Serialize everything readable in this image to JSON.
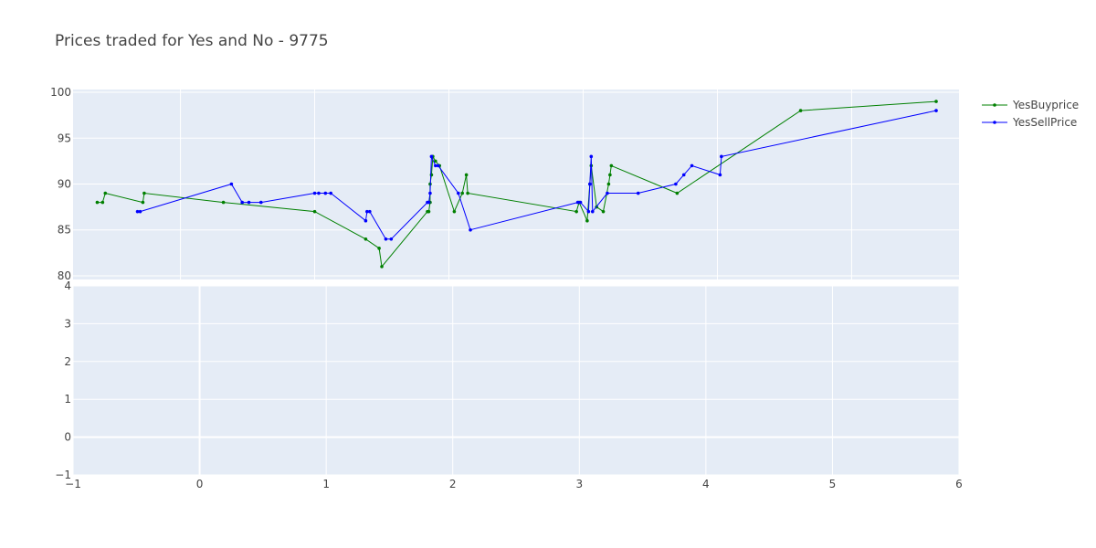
{
  "chart_data": {
    "type": "line",
    "title": "Prices traded for Yes and No - 9775",
    "top_panel": {
      "ylim": [
        79.6,
        100.3
      ],
      "xlim": [
        -0.8,
        5.8
      ],
      "yticks": [
        "80",
        "85",
        "90",
        "95",
        "100"
      ],
      "yticks_values": [
        80,
        85,
        90,
        95,
        100
      ],
      "grid": true,
      "series": [
        {
          "name": "YesBuyprice",
          "color": "#008000",
          "points": [
            [
              -0.62,
              88
            ],
            [
              -0.58,
              88
            ],
            [
              -0.56,
              89
            ],
            [
              -0.28,
              88
            ],
            [
              -0.27,
              89
            ],
            [
              0.32,
              88
            ],
            [
              1.0,
              87
            ],
            [
              1.38,
              84
            ],
            [
              1.48,
              83
            ],
            [
              1.5,
              81
            ],
            [
              1.84,
              87
            ],
            [
              1.85,
              87
            ],
            [
              1.86,
              88
            ],
            [
              1.86,
              90
            ],
            [
              1.87,
              91
            ],
            [
              1.88,
              93
            ],
            [
              1.9,
              92.5
            ],
            [
              1.93,
              92
            ],
            [
              2.04,
              87
            ],
            [
              2.1,
              89
            ],
            [
              2.13,
              91
            ],
            [
              2.14,
              89
            ],
            [
              2.95,
              87
            ],
            [
              2.97,
              88
            ],
            [
              3.03,
              86
            ],
            [
              3.05,
              90
            ],
            [
              3.06,
              92
            ],
            [
              3.1,
              87.5
            ],
            [
              3.15,
              87
            ],
            [
              3.19,
              90
            ],
            [
              3.2,
              91
            ],
            [
              3.21,
              92
            ],
            [
              3.7,
              89
            ],
            [
              4.62,
              98
            ],
            [
              5.63,
              99
            ]
          ]
        },
        {
          "name": "YesSellPrice",
          "color": "#0000ff",
          "points": [
            [
              -0.32,
              87
            ],
            [
              -0.3,
              87
            ],
            [
              0.38,
              90
            ],
            [
              0.46,
              88
            ],
            [
              0.51,
              88
            ],
            [
              0.6,
              88
            ],
            [
              1.0,
              89
            ],
            [
              1.03,
              89
            ],
            [
              1.08,
              89
            ],
            [
              1.12,
              89
            ],
            [
              1.38,
              86
            ],
            [
              1.39,
              87
            ],
            [
              1.41,
              87
            ],
            [
              1.53,
              84
            ],
            [
              1.57,
              84
            ],
            [
              1.84,
              88
            ],
            [
              1.85,
              88
            ],
            [
              1.86,
              89
            ],
            [
              1.87,
              93
            ],
            [
              1.9,
              92
            ],
            [
              1.92,
              92
            ],
            [
              2.07,
              89
            ],
            [
              2.16,
              85
            ],
            [
              2.96,
              88
            ],
            [
              2.98,
              88
            ],
            [
              3.04,
              87
            ],
            [
              3.05,
              90
            ],
            [
              3.06,
              93
            ],
            [
              3.07,
              87
            ],
            [
              3.18,
              89
            ],
            [
              3.41,
              89
            ],
            [
              3.69,
              90
            ],
            [
              3.75,
              91
            ],
            [
              3.81,
              92
            ],
            [
              4.02,
              91
            ],
            [
              4.03,
              93
            ],
            [
              5.63,
              98
            ]
          ]
        }
      ]
    },
    "bottom_panel": {
      "xlim": [
        -1,
        6
      ],
      "ylim": [
        -1,
        4
      ],
      "xticks": [
        "−1",
        "0",
        "1",
        "2",
        "3",
        "4",
        "5",
        "6"
      ],
      "xticks_values": [
        -1,
        0,
        1,
        2,
        3,
        4,
        5,
        6
      ],
      "yticks": [
        "−1",
        "0",
        "1",
        "2",
        "3",
        "4"
      ],
      "yticks_values": [
        -1,
        0,
        1,
        2,
        3,
        4
      ],
      "grid": true,
      "series": []
    },
    "legend": {
      "placement": "top-right",
      "entries": [
        "YesBuyprice",
        "YesSellPrice"
      ]
    },
    "colors": {
      "plot_bg": "#e5ecf6",
      "grid": "#ffffff",
      "text": "#444444"
    }
  }
}
